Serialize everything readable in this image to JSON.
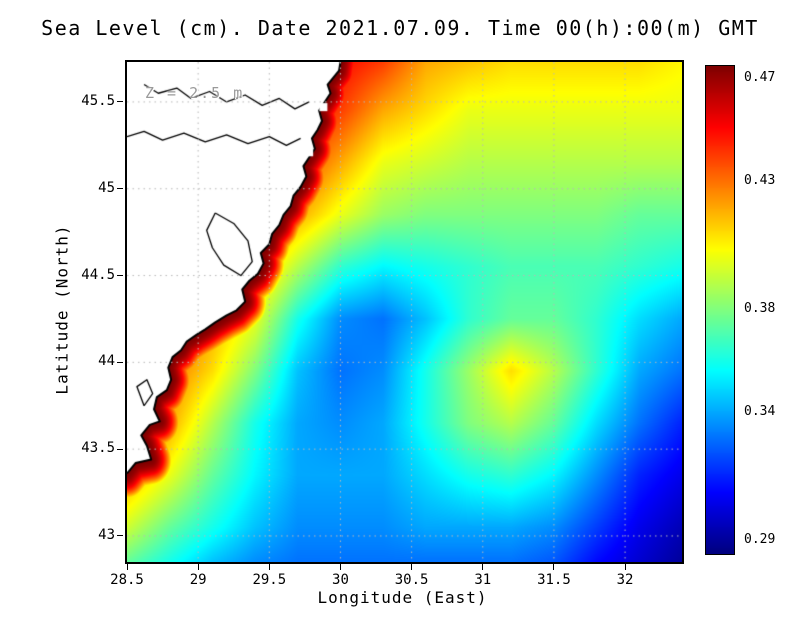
{
  "title": "Sea Level (cm). Date 2021.07.09. Time 00(h):00(m) GMT",
  "annotation": "Z = 2.5 m",
  "chart_data": {
    "type": "heatmap",
    "title": "Sea Level (cm). Date 2021.07.09. Time 00(h):00(m) GMT",
    "xlabel": "Longitude (East)",
    "ylabel": "Latitude (North)",
    "colormap": "jet",
    "grid_on": true,
    "grid_color": "#b8b8b8",
    "lon_range": [
      28.5,
      32.4
    ],
    "lat_range": [
      42.85,
      45.73
    ],
    "value_range": [
      0.285,
      0.475
    ],
    "x_tick_labels": [
      "28.5",
      "29",
      "29.5",
      "30",
      "30.5",
      "31",
      "31.5",
      "32"
    ],
    "x_tick_values": [
      28.5,
      29,
      29.5,
      30,
      30.5,
      31,
      31.5,
      32
    ],
    "y_tick_labels": [
      "43",
      "43.5",
      "44",
      "44.5",
      "45",
      "45.5"
    ],
    "y_tick_values": [
      43,
      43.5,
      44,
      44.5,
      45,
      45.5
    ],
    "colorbar_labels": [
      "0.47",
      "0.43",
      "0.38",
      "0.34",
      "0.29"
    ],
    "colorbar_values": [
      0.47,
      0.43,
      0.38,
      0.34,
      0.29
    ],
    "lon": [
      28.5,
      28.8,
      29.1,
      29.4,
      29.7,
      30.0,
      30.3,
      30.6,
      30.9,
      31.2,
      31.5,
      31.8,
      32.1,
      32.4
    ],
    "lat": [
      45.73,
      45.45,
      45.15,
      44.85,
      44.55,
      44.25,
      43.95,
      43.65,
      43.35,
      43.05,
      42.85
    ],
    "values": [
      [
        0.45,
        0.45,
        0.45,
        0.45,
        0.45,
        0.45,
        0.44,
        0.42,
        0.415,
        0.41,
        0.41,
        0.41,
        0.41,
        0.405
      ],
      [
        0.45,
        0.45,
        0.45,
        0.45,
        0.45,
        0.44,
        0.42,
        0.41,
        0.4,
        0.4,
        0.4,
        0.4,
        0.4,
        0.4
      ],
      [
        0.45,
        0.45,
        0.45,
        0.45,
        0.44,
        0.42,
        0.4,
        0.395,
        0.39,
        0.39,
        0.39,
        0.39,
        0.39,
        0.39
      ],
      [
        0.45,
        0.45,
        0.45,
        0.44,
        0.42,
        0.4,
        0.385,
        0.38,
        0.38,
        0.38,
        0.38,
        0.38,
        0.375,
        0.375
      ],
      [
        0.45,
        0.45,
        0.44,
        0.42,
        0.39,
        0.365,
        0.355,
        0.36,
        0.365,
        0.37,
        0.37,
        0.37,
        0.365,
        0.36
      ],
      [
        0.45,
        0.44,
        0.42,
        0.4,
        0.36,
        0.335,
        0.33,
        0.345,
        0.365,
        0.375,
        0.375,
        0.365,
        0.35,
        0.34
      ],
      [
        0.44,
        0.43,
        0.41,
        0.38,
        0.345,
        0.33,
        0.335,
        0.36,
        0.385,
        0.41,
        0.39,
        0.365,
        0.34,
        0.33
      ],
      [
        0.44,
        0.42,
        0.39,
        0.36,
        0.34,
        0.335,
        0.34,
        0.36,
        0.38,
        0.39,
        0.375,
        0.35,
        0.33,
        0.315
      ],
      [
        0.42,
        0.4,
        0.375,
        0.355,
        0.34,
        0.34,
        0.34,
        0.35,
        0.36,
        0.365,
        0.355,
        0.335,
        0.315,
        0.305
      ],
      [
        0.395,
        0.375,
        0.36,
        0.345,
        0.335,
        0.335,
        0.335,
        0.34,
        0.34,
        0.34,
        0.335,
        0.32,
        0.305,
        0.295
      ],
      [
        0.375,
        0.36,
        0.345,
        0.335,
        0.33,
        0.33,
        0.33,
        0.33,
        0.33,
        0.33,
        0.325,
        0.31,
        0.3,
        0.29
      ]
    ],
    "coastal_band": {
      "peak": 0.475,
      "falloff": 3.5
    },
    "coastline": [
      [
        28.5,
        43.36
      ],
      [
        28.56,
        43.42
      ],
      [
        28.67,
        43.44
      ],
      [
        28.64,
        43.52
      ],
      [
        28.6,
        43.58
      ],
      [
        28.66,
        43.64
      ],
      [
        28.73,
        43.66
      ],
      [
        28.69,
        43.73
      ],
      [
        28.71,
        43.8
      ],
      [
        28.78,
        43.84
      ],
      [
        28.81,
        43.9
      ],
      [
        28.79,
        43.97
      ],
      [
        28.82,
        44.03
      ],
      [
        28.88,
        44.07
      ],
      [
        28.92,
        44.12
      ],
      [
        28.99,
        44.16
      ],
      [
        29.05,
        44.19
      ],
      [
        29.12,
        44.23
      ],
      [
        29.2,
        44.27
      ],
      [
        29.27,
        44.3
      ],
      [
        29.33,
        44.35
      ],
      [
        29.31,
        44.42
      ],
      [
        29.36,
        44.47
      ],
      [
        29.42,
        44.51
      ],
      [
        29.46,
        44.57
      ],
      [
        29.44,
        44.63
      ],
      [
        29.5,
        44.68
      ],
      [
        29.52,
        44.74
      ],
      [
        29.57,
        44.79
      ],
      [
        29.6,
        44.85
      ],
      [
        29.65,
        44.9
      ],
      [
        29.67,
        44.96
      ],
      [
        29.72,
        45.01
      ],
      [
        29.76,
        45.07
      ],
      [
        29.74,
        45.13
      ],
      [
        29.78,
        45.18
      ],
      [
        29.82,
        45.23
      ],
      [
        29.8,
        45.29
      ],
      [
        29.84,
        45.34
      ],
      [
        29.87,
        45.39
      ],
      [
        29.85,
        45.45
      ],
      [
        29.89,
        45.5
      ],
      [
        29.93,
        45.55
      ],
      [
        29.91,
        45.6
      ],
      [
        29.95,
        45.64
      ],
      [
        29.99,
        45.68
      ],
      [
        30.0,
        45.73
      ]
    ],
    "inner_coast_lines": [
      [
        [
          28.62,
          45.6
        ],
        [
          28.72,
          45.55
        ],
        [
          28.85,
          45.58
        ],
        [
          28.95,
          45.52
        ],
        [
          29.08,
          45.56
        ],
        [
          29.2,
          45.5
        ],
        [
          29.33,
          45.54
        ],
        [
          29.45,
          45.48
        ],
        [
          29.57,
          45.52
        ],
        [
          29.68,
          45.46
        ],
        [
          29.78,
          45.5
        ]
      ],
      [
        [
          28.5,
          45.3
        ],
        [
          28.62,
          45.33
        ],
        [
          28.75,
          45.28
        ],
        [
          28.9,
          45.32
        ],
        [
          29.05,
          45.27
        ],
        [
          29.2,
          45.31
        ],
        [
          29.35,
          45.26
        ],
        [
          29.5,
          45.3
        ],
        [
          29.62,
          45.25
        ],
        [
          29.72,
          45.29
        ]
      ],
      [
        [
          29.12,
          44.86
        ],
        [
          29.25,
          44.8
        ],
        [
          29.35,
          44.7
        ],
        [
          29.38,
          44.58
        ],
        [
          29.3,
          44.5
        ],
        [
          29.18,
          44.56
        ],
        [
          29.1,
          44.66
        ],
        [
          29.06,
          44.76
        ],
        [
          29.12,
          44.86
        ]
      ],
      [
        [
          28.62,
          43.75
        ],
        [
          28.68,
          43.82
        ],
        [
          28.64,
          43.9
        ],
        [
          28.57,
          43.86
        ],
        [
          28.62,
          43.75
        ]
      ]
    ],
    "coast_patches": [
      [
        29.78,
        45.21
      ],
      [
        29.88,
        45.47
      ]
    ]
  }
}
